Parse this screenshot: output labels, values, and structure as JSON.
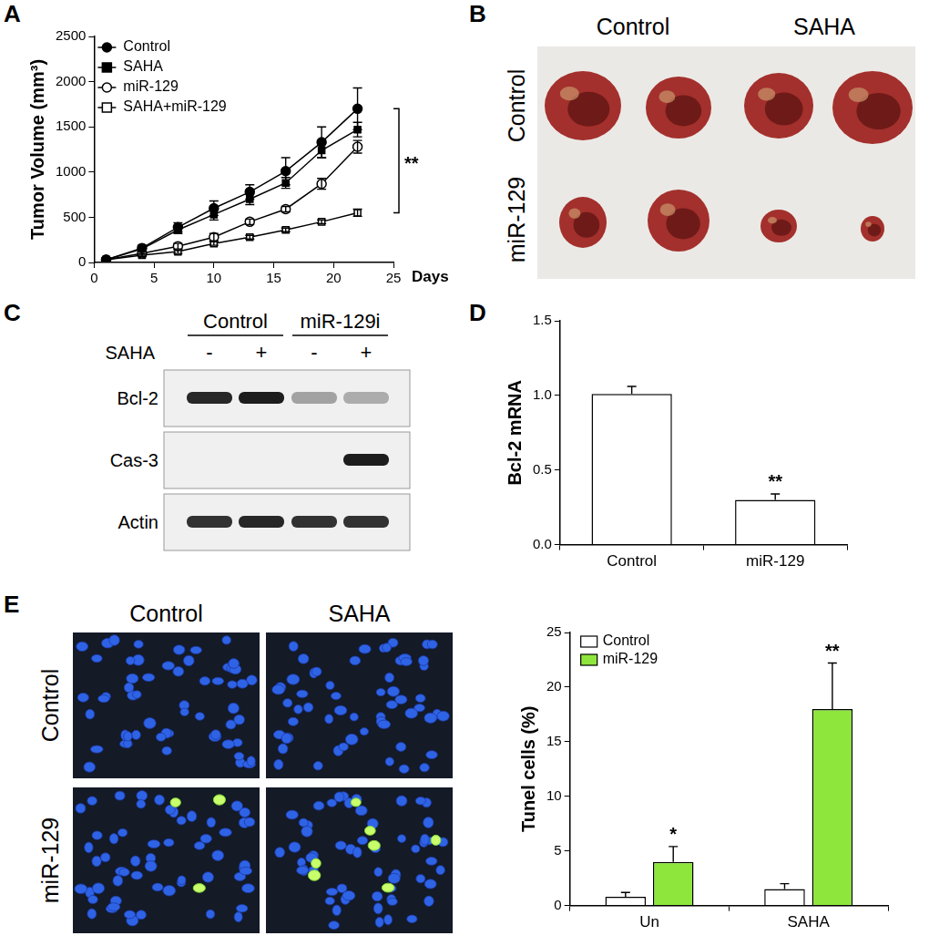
{
  "panel_letters": [
    "A",
    "B",
    "C",
    "D",
    "E"
  ],
  "chart_data": [
    {
      "type": "line",
      "x": [
        1,
        4,
        7,
        10,
        13,
        16,
        19,
        22
      ],
      "xlim": [
        0,
        25
      ],
      "xticks": [
        0,
        5,
        10,
        15,
        20,
        25
      ],
      "x_label": "Days",
      "y_label": "Tumor Volume (mm³)",
      "ylim": [
        0,
        2500
      ],
      "yticks": [
        0,
        500,
        1000,
        1500,
        2000,
        2500
      ],
      "grid": false,
      "legend": "top-left",
      "series": [
        {
          "name": "Control",
          "color": "#000000",
          "marker": "circle",
          "line_style": "solid",
          "values": [
            30,
            160,
            390,
            600,
            780,
            1010,
            1330,
            1700
          ],
          "errors": [
            20,
            30,
            50,
            80,
            80,
            150,
            170,
            230
          ]
        },
        {
          "name": "SAHA",
          "color": "#000000",
          "marker": "square",
          "line_style": "solid",
          "values": [
            30,
            150,
            360,
            530,
            700,
            880,
            1240,
            1470
          ],
          "errors": [
            15,
            20,
            40,
            60,
            60,
            60,
            80,
            80
          ]
        },
        {
          "name": "miR-129",
          "color": "#000000",
          "marker": "circle-open",
          "line_style": "solid",
          "values": [
            30,
            100,
            180,
            280,
            450,
            590,
            870,
            1280
          ],
          "errors": [
            10,
            20,
            30,
            40,
            30,
            30,
            60,
            70
          ]
        },
        {
          "name": "SAHA+miR-129",
          "color": "#000000",
          "marker": "square-open",
          "line_style": "solid",
          "values": [
            30,
            80,
            120,
            210,
            280,
            360,
            450,
            550
          ],
          "errors": [
            10,
            15,
            20,
            20,
            20,
            20,
            20,
            40
          ]
        }
      ],
      "annotations": [
        {
          "text": "**",
          "between": [
            "Control",
            "SAHA+miR-129"
          ]
        }
      ]
    },
    {
      "type": "bar",
      "categories": [
        "Control",
        "miR-129"
      ],
      "values": [
        1.01,
        0.3
      ],
      "errors": [
        0.05,
        0.04
      ],
      "color": "#ffffff",
      "y_label": "Bcl-2 mRNA",
      "ylim": [
        0,
        1.5
      ],
      "yticks": [
        {
          "value": 0,
          "label": "0.0"
        },
        {
          "value": 0.5,
          "label": "0.5"
        },
        {
          "value": 1,
          "label": "1.0"
        },
        {
          "value": 1.5,
          "label": "1.5"
        }
      ],
      "grid": false,
      "annotations": [
        {
          "text": "**",
          "category": "miR-129"
        }
      ]
    },
    {
      "type": "bar",
      "categories": [
        "Un",
        "SAHA"
      ],
      "series": [
        {
          "name": "Control",
          "color": "#ffffff",
          "values": [
            0.8,
            1.5
          ],
          "errors": [
            0.4,
            0.5
          ]
        },
        {
          "name": "miR-129",
          "color": "#8ee63c",
          "values": [
            4.0,
            18.0
          ],
          "errors": [
            1.4,
            4.2
          ]
        }
      ],
      "y_label": "Tunel cells (%)",
      "ylim": [
        0,
        25
      ],
      "yticks": [
        0,
        5,
        10,
        15,
        20,
        25
      ],
      "grid": false,
      "legend": "top-left",
      "annotations": [
        {
          "text": "*",
          "category": "Un",
          "series": "miR-129"
        },
        {
          "text": "**",
          "category": "SAHA",
          "series": "miR-129"
        }
      ]
    }
  ],
  "photo_B": {
    "columns": [
      "Control",
      "SAHA"
    ],
    "rows": [
      "Control",
      "miR-129"
    ]
  },
  "blot_C": {
    "columns": [
      "Control",
      "miR-129i"
    ],
    "treatment_label": "SAHA",
    "treatment": [
      "-",
      "+",
      "-",
      "+"
    ],
    "rows": [
      {
        "label": "Bcl-2",
        "band_intensity": [
          0.9,
          0.95,
          0.35,
          0.3
        ]
      },
      {
        "label": "Cas-3",
        "band_intensity": [
          0,
          0,
          0,
          0.95
        ]
      },
      {
        "label": "Actin",
        "band_intensity": [
          0.85,
          0.9,
          0.85,
          0.85
        ]
      }
    ]
  },
  "micrographs_E": {
    "columns": [
      "Control",
      "SAHA"
    ],
    "rows": [
      "Control",
      "miR-129"
    ]
  }
}
